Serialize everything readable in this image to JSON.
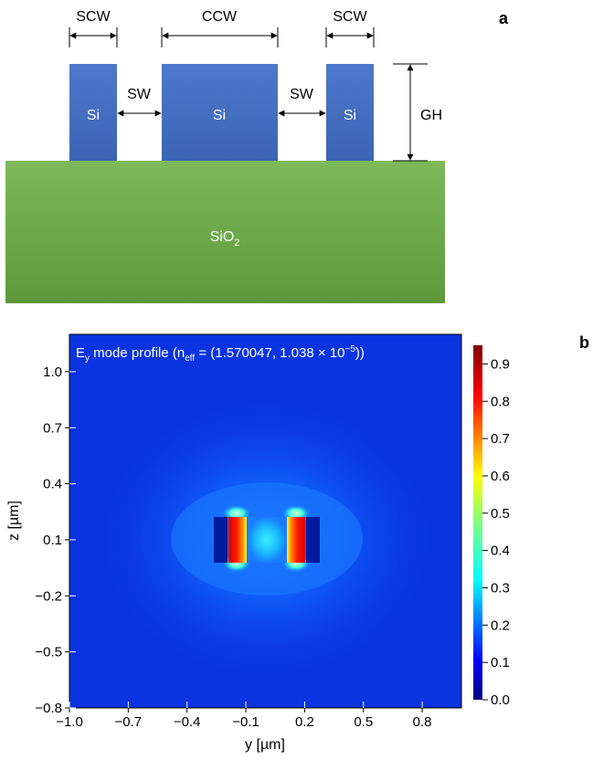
{
  "panel_a": {
    "panel_letter": "a",
    "scw_left": "SCW",
    "ccw": "CCW",
    "scw_right": "SCW",
    "sw_left": "SW",
    "sw_right": "SW",
    "gh": "GH",
    "si_left": "Si",
    "si_center": "Si",
    "si_right": "Si",
    "substrate_base": "SiO",
    "substrate_sub": "2",
    "colors": {
      "silicon": "#4a72c4",
      "substrate": "#70ad47"
    }
  },
  "panel_b": {
    "panel_letter": "b",
    "chart_data": {
      "type": "heatmap",
      "title": "E_y mode profile (n_eff = (1.570047, 1.038 × 10^−5))",
      "title_parts": {
        "e": "E",
        "e_sub": "y",
        "mid": " mode profile (n",
        "n_sub": "eff",
        "eq": " = (1.570047, 1.038 × 10",
        "exp": "−5",
        "end": "))"
      },
      "xlabel": "y [µm]",
      "ylabel": "z [µm]",
      "xlim": [
        -1.0,
        1.0
      ],
      "ylim": [
        -0.8,
        1.2
      ],
      "x_ticks": [
        "−1.0",
        "−0.7",
        "−0.4",
        "−0.1",
        "0.2",
        "0.5",
        "0.8"
      ],
      "y_ticks": [
        "−0.8",
        "−0.5",
        "−0.2",
        "0.1",
        "0.4",
        "0.7",
        "1.0"
      ],
      "colorbar": {
        "range": [
          0.0,
          0.95
        ],
        "ticks": [
          "0.0",
          "0.1",
          "0.2",
          "0.3",
          "0.4",
          "0.5",
          "0.6",
          "0.7",
          "0.8",
          "0.9"
        ],
        "colormap": "jet"
      },
      "features": [
        {
          "region": "left gap hot spot",
          "y": [
            -0.13,
            -0.08
          ],
          "z": [
            0.0,
            0.3
          ],
          "value": 0.95
        },
        {
          "region": "right gap hot spot",
          "y": [
            0.13,
            0.18
          ],
          "z": [
            0.0,
            0.3
          ],
          "value": 0.95
        },
        {
          "region": "center waveguide core",
          "y": [
            -0.08,
            0.13
          ],
          "z": [
            0.0,
            0.3
          ],
          "value": 0.4
        },
        {
          "region": "left side strip",
          "y": [
            -0.23,
            -0.17
          ],
          "z": [
            0.0,
            0.3
          ],
          "value": 0.02
        },
        {
          "region": "right side strip",
          "y": [
            0.24,
            0.3
          ],
          "z": [
            0.0,
            0.3
          ],
          "value": 0.02
        },
        {
          "region": "background cladding",
          "value": 0.05
        }
      ]
    }
  }
}
